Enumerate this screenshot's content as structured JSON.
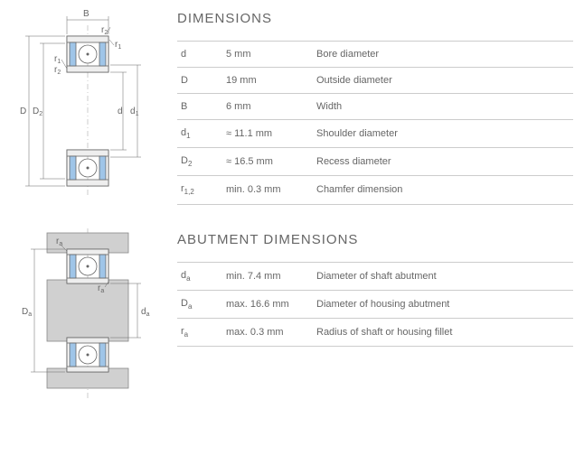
{
  "sections": {
    "dimensions": {
      "title": "DIMENSIONS",
      "rows": [
        {
          "sym": "d",
          "sub": "",
          "val": "5 mm",
          "desc": "Bore diameter"
        },
        {
          "sym": "D",
          "sub": "",
          "val": "19 mm",
          "desc": "Outside diameter"
        },
        {
          "sym": "B",
          "sub": "",
          "val": "6 mm",
          "desc": "Width"
        },
        {
          "sym": "d",
          "sub": "1",
          "val": "≈ 11.1 mm",
          "desc": "Shoulder diameter"
        },
        {
          "sym": "D",
          "sub": "2",
          "val": "≈ 16.5 mm",
          "desc": "Recess diameter"
        },
        {
          "sym": "r",
          "sub": "1,2",
          "val": "min. 0.3 mm",
          "desc": "Chamfer dimension"
        }
      ]
    },
    "abutment": {
      "title": "ABUTMENT DIMENSIONS",
      "rows": [
        {
          "sym": "d",
          "sub": "a",
          "val": "min. 7.4 mm",
          "desc": "Diameter of shaft abutment"
        },
        {
          "sym": "D",
          "sub": "a",
          "val": "max. 16.6 mm",
          "desc": "Diameter of housing abutment"
        },
        {
          "sym": "r",
          "sub": "a",
          "val": "max. 0.3 mm",
          "desc": "Radius of shaft or housing fillet"
        }
      ]
    }
  },
  "diagram_labels": {
    "top": {
      "B": "B",
      "r2": "r",
      "r2_sub": "2",
      "r1": "r",
      "r1_sub": "1",
      "D": "D",
      "D2": "D",
      "D2_sub": "2",
      "d": "d",
      "d1": "d",
      "d1_sub": "1"
    },
    "bottom": {
      "ra": "r",
      "ra_sub": "a",
      "Da": "D",
      "Da_sub": "a",
      "da": "d",
      "da_sub": "a"
    }
  },
  "colors": {
    "seal": "#9fc5e8",
    "metal": "#eeeeee",
    "ball": "#ffffff",
    "stroke": "#666666",
    "light_stroke": "#aaaaaa",
    "abutment_fill": "#d0d0d0"
  }
}
